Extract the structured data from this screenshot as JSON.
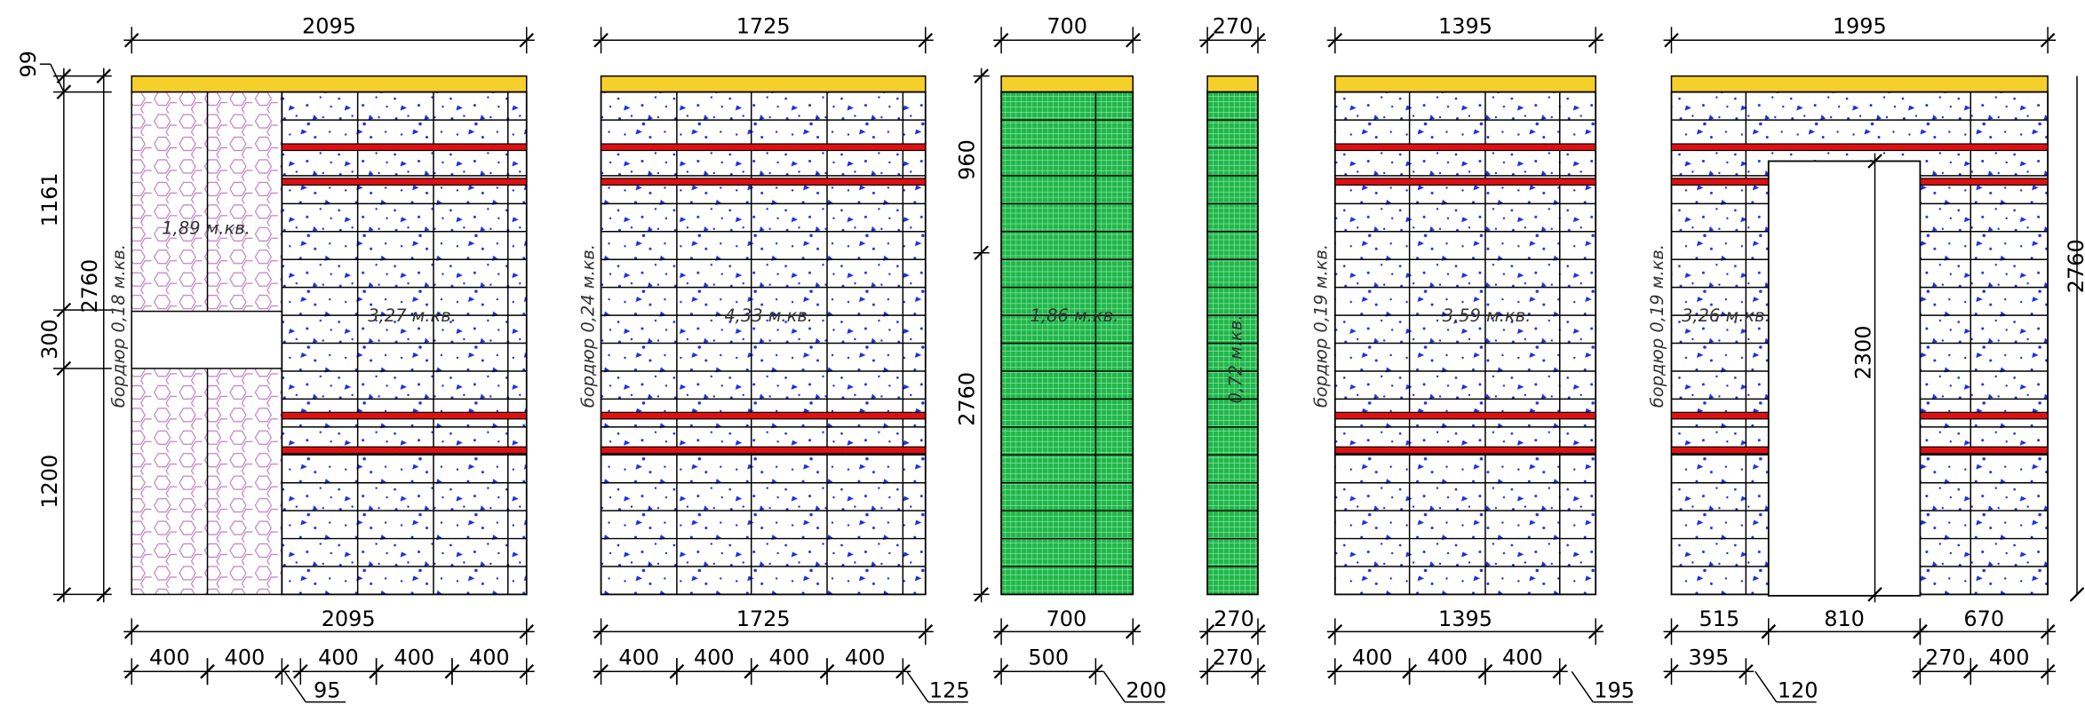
{
  "panels": [
    {
      "width_dim": "2095",
      "bottom_totals": [
        "2095"
      ],
      "segments": [
        "400",
        "400",
        "400",
        "400",
        "400"
      ],
      "offset": "95",
      "labels": [
        "1,89 м.кв.",
        "3,27 м.кв.",
        "бордюр 0,18 м.кв."
      ]
    },
    {
      "width_dim": "1725",
      "bottom_totals": [
        "1725"
      ],
      "segments": [
        "400",
        "400",
        "400",
        "400"
      ],
      "offset": "125",
      "labels": [
        "4,33 м.кв.",
        "бордюр 0,24 м.кв."
      ]
    },
    {
      "width_dim": "700",
      "bottom_totals": [
        "700"
      ],
      "segments": [
        "500"
      ],
      "offset": "200",
      "labels": [
        "1,86 м.кв."
      ]
    },
    {
      "width_dim": "270",
      "bottom_totals": [
        "270"
      ],
      "segments": [
        "270"
      ],
      "labels": [
        "0,72 м.кв."
      ]
    },
    {
      "width_dim": "1395",
      "bottom_totals": [
        "1395"
      ],
      "segments": [
        "400",
        "400",
        "400"
      ],
      "offset": "195",
      "labels": [
        "3,59 м.кв.",
        "бордюр 0,19 м.кв."
      ]
    },
    {
      "width_dim": "1995",
      "bottom_totals": [
        "515",
        "810",
        "670"
      ],
      "segments": [
        "395",
        "270",
        "400"
      ],
      "offset": "120",
      "labels": [
        "3,26 м.кв.",
        "бордюр 0,19 м.кв."
      ]
    }
  ],
  "left_dims": [
    "99",
    "1161",
    "2760",
    "300",
    "1200"
  ],
  "panel3_dims": [
    "960",
    "2760"
  ],
  "opening_height": "2300",
  "right_dim": "2760"
}
